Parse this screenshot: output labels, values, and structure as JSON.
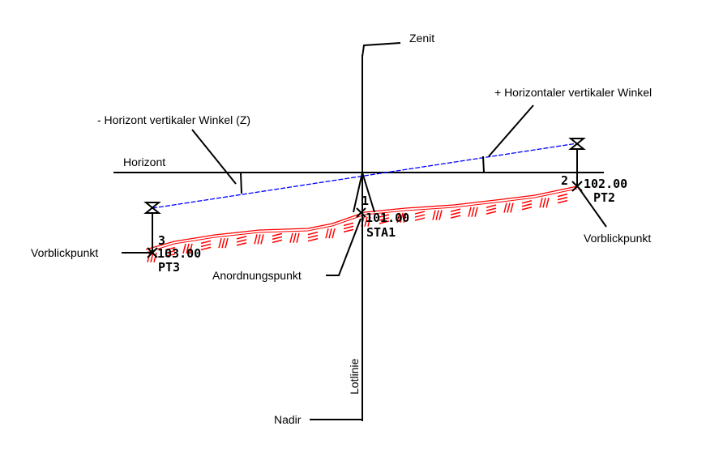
{
  "labels": {
    "zenit": "Zenit",
    "nadir": "Nadir",
    "horizont": "Horizont",
    "lotlinie": "Lotlinie",
    "neg_angle": "- Horizont vertikaler Winkel (Z)",
    "pos_angle": "+ Horizontaler vertikaler Winkel",
    "vorblick_left": "Vorblickpunkt",
    "vorblick_right": "Vorblickpunkt",
    "anordnung": "Anordnungspunkt"
  },
  "points": {
    "pt3": {
      "num": "3",
      "elev": "103.00",
      "name": "PT3"
    },
    "sta1": {
      "num": "1",
      "elev": "101.00",
      "name": "STA1"
    },
    "pt2": {
      "num": "2",
      "elev": "102.00",
      "name": "PT2"
    }
  },
  "colors": {
    "sightline": "#0000ff",
    "terrain": "#ff0000",
    "lines": "#000000"
  }
}
